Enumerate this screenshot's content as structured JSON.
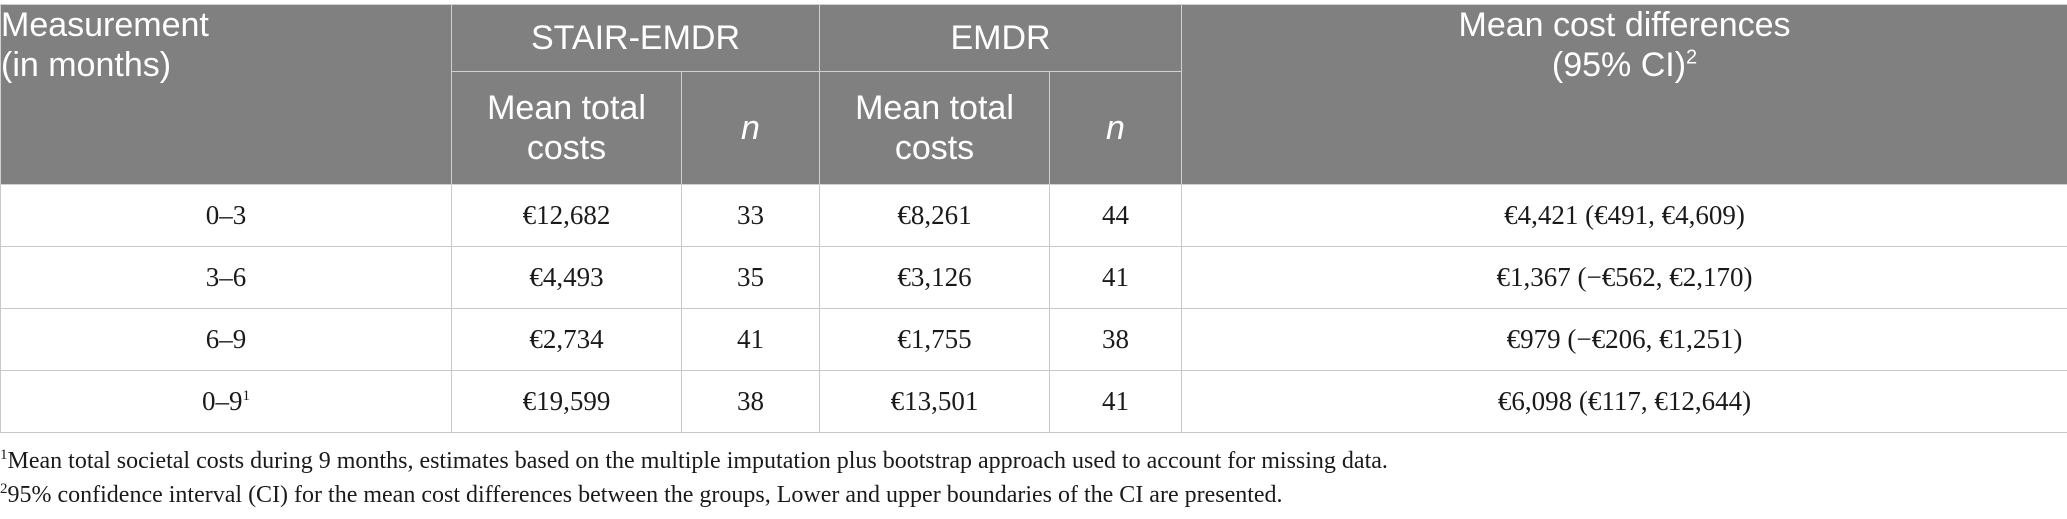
{
  "header": {
    "measurement_line1": "Measurement",
    "measurement_line2": "(in months)",
    "group1": "STAIR-EMDR",
    "group2": "EMDR",
    "diff_line1": "Mean cost differences",
    "diff_line2": "(95% CI)",
    "diff_sup": "2",
    "mean_total_line1": "Mean total",
    "mean_total_line2": "costs",
    "n_label": "n"
  },
  "rows": [
    {
      "measurement": "0–3",
      "sup": "",
      "stair_mean": "€12,682",
      "stair_n": "33",
      "emdr_mean": "€8,261",
      "emdr_n": "44",
      "diff": "€4,421 (€491, €4,609)"
    },
    {
      "measurement": "3–6",
      "sup": "",
      "stair_mean": "€4,493",
      "stair_n": "35",
      "emdr_mean": "€3,126",
      "emdr_n": "41",
      "diff": "€1,367 (−€562, €2,170)"
    },
    {
      "measurement": "6–9",
      "sup": "",
      "stair_mean": "€2,734",
      "stair_n": "41",
      "emdr_mean": "€1,755",
      "emdr_n": "38",
      "diff": "€979 (−€206, €1,251)"
    },
    {
      "measurement": "0–9",
      "sup": "1",
      "stair_mean": "€19,599",
      "stair_n": "38",
      "emdr_mean": "€13,501",
      "emdr_n": "41",
      "diff": "€6,098 (€117, €12,644)"
    }
  ],
  "footnotes": [
    {
      "mark": "1",
      "text": "Mean total societal costs during 9 months, estimates based on the multiple imputation plus bootstrap approach used to account for missing data."
    },
    {
      "mark": "2",
      "text": "95% confidence interval (CI) for the mean cost differences between the groups, Lower and upper boundaries of the CI are presented."
    }
  ]
}
